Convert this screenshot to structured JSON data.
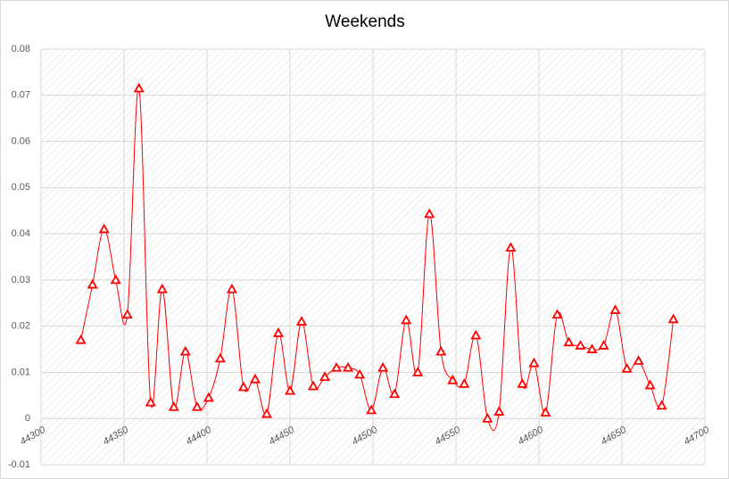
{
  "chart_data": {
    "type": "line",
    "title": "Weekends",
    "x": [
      44324,
      44331,
      44338,
      44345,
      44352,
      44359,
      44366,
      44373,
      44380,
      44387,
      44394,
      44401,
      44408,
      44415,
      44422,
      44429,
      44436,
      44443,
      44450,
      44457,
      44464,
      44471,
      44478,
      44485,
      44492,
      44499,
      44506,
      44513,
      44520,
      44527,
      44534,
      44541,
      44548,
      44555,
      44562,
      44569,
      44576,
      44583,
      44590,
      44597,
      44604,
      44611,
      44618,
      44625,
      44632,
      44639,
      44646,
      44653,
      44660,
      44667,
      44674,
      44681
    ],
    "series": [
      {
        "name": "Weekends",
        "color": "#ff0000",
        "values": [
          0.017,
          0.029,
          0.041,
          0.03,
          0.0225,
          0.0715,
          0.0035,
          0.028,
          0.0025,
          0.0145,
          0.0025,
          0.0045,
          0.013,
          0.028,
          0.0068,
          0.0085,
          0.001,
          0.0185,
          0.006,
          0.021,
          0.007,
          0.009,
          0.011,
          0.011,
          0.0095,
          0.0018,
          0.011,
          0.0053,
          0.0213,
          0.01,
          0.0443,
          0.0145,
          0.0083,
          0.0075,
          0.018,
          0.0,
          0.0015,
          0.037,
          0.0075,
          0.012,
          0.0013,
          0.0225,
          0.0165,
          0.0158,
          0.015,
          0.0158,
          0.0235,
          0.0108,
          0.0125,
          0.0072,
          0.0028,
          0.0215
        ]
      }
    ],
    "xlim": [
      44300,
      44700
    ],
    "xticks": [
      44300,
      44350,
      44400,
      44450,
      44500,
      44550,
      44600,
      44650,
      44700
    ],
    "ylim": [
      -0.01,
      0.08
    ],
    "yticks": [
      -0.01,
      0,
      0.01,
      0.02,
      0.03,
      0.04,
      0.05,
      0.06,
      0.07,
      0.08
    ],
    "grid": true,
    "marker": "triangle"
  }
}
